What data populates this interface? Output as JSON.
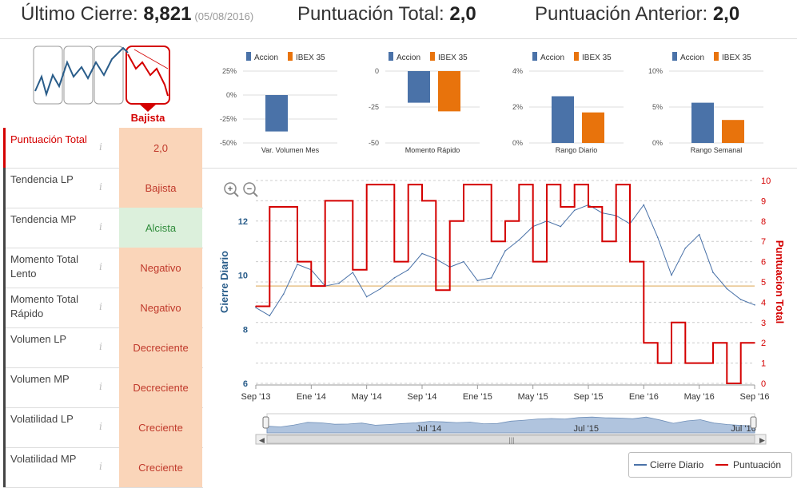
{
  "header": {
    "ultimo_label": "Último Cierre:",
    "ultimo_value": "8,821",
    "ultimo_date": "(05/08/2016)",
    "total_label": "Puntuación Total:",
    "total_value": "2,0",
    "anterior_label": "Puntuación Anterior:",
    "anterior_value": "2,0"
  },
  "trend": {
    "label": "Bajista"
  },
  "rows": [
    {
      "label": "Puntuación Total",
      "value": "2,0",
      "value_style": "orange",
      "value_color": "#c0392b",
      "info_icon": "info-icon",
      "highlight": true
    },
    {
      "label": "Tendencia LP",
      "value": "Bajista",
      "value_style": "orange",
      "value_color": "#c0392b",
      "info_icon": "info-icon"
    },
    {
      "label": "Tendencia MP",
      "value": "Alcista",
      "value_style": "green",
      "value_color": "#2e8b3a",
      "info_icon": "info-icon"
    },
    {
      "label": "Momento Total Lento",
      "value": "Negativo",
      "value_style": "orange",
      "value_color": "#c0392b",
      "info_icon": "info-icon"
    },
    {
      "label": "Momento Total Rápido",
      "value": "Negativo",
      "value_style": "orange",
      "value_color": "#c0392b",
      "info_icon": "info-icon"
    },
    {
      "label": "Volumen LP",
      "value": "Decreciente",
      "value_style": "orange",
      "value_color": "#c0392b",
      "info_icon": "info-icon"
    },
    {
      "label": "Volumen MP",
      "value": "Decreciente",
      "value_style": "orange",
      "value_color": "#c0392b",
      "info_icon": "info-icon"
    },
    {
      "label": "Volatilidad LP",
      "value": "Creciente",
      "value_style": "orange",
      "value_color": "#c0392b",
      "info_icon": "info-icon"
    },
    {
      "label": "Volatilidad MP",
      "value": "Creciente",
      "value_style": "orange",
      "value_color": "#c0392b",
      "info_icon": "info-icon"
    }
  ],
  "colors": {
    "accion": "#4a72a8",
    "ibex": "#e8730c",
    "red": "#d40000",
    "avg": "#e8c28a",
    "nav": "#b0c4de"
  },
  "chart_data": [
    {
      "type": "bar",
      "categories": [
        "Var. Volumen Mes"
      ],
      "series": [
        {
          "name": "Accion",
          "values": [
            -38
          ]
        },
        {
          "name": "IBEX 35",
          "values": [
            0
          ]
        }
      ],
      "ylim": [
        -50,
        25
      ],
      "yticks": [
        "25%",
        "0%",
        "-25%",
        "-50%"
      ],
      "legend": "top"
    },
    {
      "type": "bar",
      "categories": [
        "Momento Rápido"
      ],
      "series": [
        {
          "name": "Accion",
          "values": [
            -22
          ]
        },
        {
          "name": "IBEX 35",
          "values": [
            -28
          ]
        }
      ],
      "ylim": [
        -50,
        0
      ],
      "yticks": [
        "0",
        "-25",
        "-50"
      ],
      "legend": "top"
    },
    {
      "type": "bar",
      "categories": [
        "Rango Diario"
      ],
      "series": [
        {
          "name": "Accion",
          "values": [
            2.6
          ]
        },
        {
          "name": "IBEX 35",
          "values": [
            1.7
          ]
        }
      ],
      "ylim": [
        0,
        4
      ],
      "yticks": [
        "4%",
        "2%",
        "0%"
      ],
      "legend": "top"
    },
    {
      "type": "bar",
      "categories": [
        "Rango Semanal"
      ],
      "series": [
        {
          "name": "Accion",
          "values": [
            5.6
          ]
        },
        {
          "name": "IBEX 35",
          "values": [
            3.2
          ]
        }
      ],
      "ylim": [
        0,
        10
      ],
      "yticks": [
        "10%",
        "5%",
        "0%"
      ],
      "legend": "top"
    },
    {
      "type": "line",
      "ylabel": "Cierre Diario",
      "y2label": "Puntuacion Total",
      "ylim": [
        6,
        13.5
      ],
      "y2lim": [
        0,
        10
      ],
      "yticks": [
        6,
        8,
        10,
        12
      ],
      "y2ticks": [
        0,
        1,
        2,
        3,
        4,
        5,
        6,
        7,
        8,
        9,
        10
      ],
      "xticks": [
        "Sep '13",
        "Ene '14",
        "May '14",
        "Sep '14",
        "Ene '15",
        "May '15",
        "Sep '15",
        "Ene '16",
        "May '16",
        "Sep '16"
      ],
      "navigator_ticks": [
        "Jul '14",
        "Jul '15",
        "Jul '16"
      ],
      "average_line": 4.8,
      "series": [
        {
          "name": "Cierre Diario",
          "x": [
            0,
            1,
            2,
            3,
            4,
            5,
            6,
            7,
            8,
            9,
            10,
            11,
            12,
            13,
            14,
            15,
            16,
            17,
            18,
            19,
            20,
            21,
            22,
            23,
            24,
            25,
            26,
            27,
            28,
            29,
            30,
            31,
            32,
            33,
            34,
            35,
            36
          ],
          "values": [
            8.8,
            8.5,
            9.3,
            10.4,
            10.2,
            9.6,
            9.7,
            10.1,
            9.2,
            9.5,
            9.9,
            10.2,
            10.8,
            10.6,
            10.3,
            10.5,
            9.8,
            9.9,
            10.9,
            11.3,
            11.8,
            12.0,
            11.8,
            12.4,
            12.6,
            12.3,
            12.2,
            11.9,
            12.6,
            11.4,
            10.0,
            11.0,
            11.5,
            10.1,
            9.5,
            9.1,
            8.9
          ]
        },
        {
          "name": "Puntuación",
          "x": [
            0,
            1,
            2,
            3,
            4,
            5,
            6,
            7,
            8,
            9,
            10,
            11,
            12,
            13,
            14,
            15,
            16,
            17,
            18,
            19,
            20,
            21,
            22,
            23,
            24,
            25,
            26,
            27,
            28,
            29,
            30,
            31,
            32,
            33,
            34,
            35,
            36
          ],
          "values": [
            3.8,
            8.7,
            8.7,
            6.0,
            4.8,
            9.0,
            9.0,
            5.6,
            9.8,
            9.8,
            6.0,
            9.8,
            9.0,
            4.6,
            8.0,
            9.8,
            9.8,
            7.0,
            8.0,
            9.8,
            6.0,
            9.8,
            8.7,
            9.8,
            8.7,
            7.0,
            9.8,
            6.0,
            2.0,
            1.0,
            3.0,
            1.0,
            1.0,
            2.0,
            0.0,
            2.0,
            2.0
          ]
        }
      ]
    }
  ]
}
